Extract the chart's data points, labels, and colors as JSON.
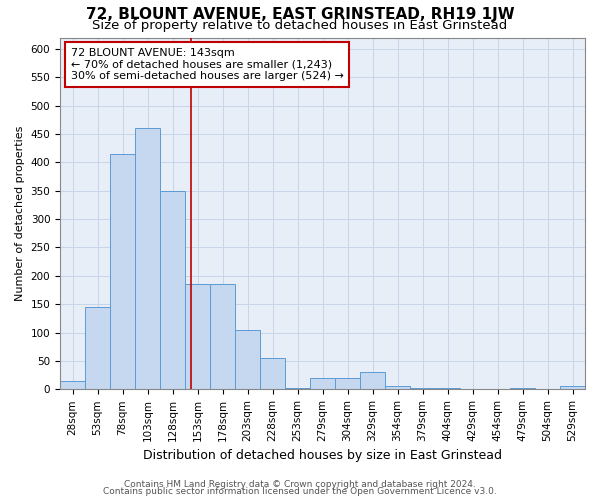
{
  "title": "72, BLOUNT AVENUE, EAST GRINSTEAD, RH19 1JW",
  "subtitle": "Size of property relative to detached houses in East Grinstead",
  "xlabel": "Distribution of detached houses by size in East Grinstead",
  "ylabel": "Number of detached properties",
  "footer_line1": "Contains HM Land Registry data © Crown copyright and database right 2024.",
  "footer_line2": "Contains public sector information licensed under the Open Government Licence v3.0.",
  "bar_labels": [
    "28sqm",
    "53sqm",
    "78sqm",
    "103sqm",
    "128sqm",
    "153sqm",
    "178sqm",
    "203sqm",
    "228sqm",
    "253sqm",
    "279sqm",
    "304sqm",
    "329sqm",
    "354sqm",
    "379sqm",
    "404sqm",
    "429sqm",
    "454sqm",
    "479sqm",
    "504sqm",
    "529sqm"
  ],
  "bar_values": [
    15,
    145,
    415,
    460,
    350,
    185,
    185,
    105,
    55,
    2,
    20,
    20,
    30,
    5,
    2,
    2,
    0,
    0,
    2,
    0,
    5
  ],
  "bar_color": "#c5d8f0",
  "bar_edge_color": "#5b9bd5",
  "grid_color": "#c8d4e8",
  "background_color": "#e8eef8",
  "vline_color": "#c00000",
  "annotation_text": "72 BLOUNT AVENUE: 143sqm\n← 70% of detached houses are smaller (1,243)\n30% of semi-detached houses are larger (524) →",
  "annotation_box_color": "white",
  "annotation_box_edge": "#c00000",
  "ylim": [
    0,
    620
  ],
  "yticks": [
    0,
    50,
    100,
    150,
    200,
    250,
    300,
    350,
    400,
    450,
    500,
    550,
    600
  ],
  "title_fontsize": 11,
  "subtitle_fontsize": 9.5,
  "xlabel_fontsize": 9,
  "ylabel_fontsize": 8,
  "tick_fontsize": 7.5,
  "annotation_fontsize": 8,
  "footer_fontsize": 6.5
}
